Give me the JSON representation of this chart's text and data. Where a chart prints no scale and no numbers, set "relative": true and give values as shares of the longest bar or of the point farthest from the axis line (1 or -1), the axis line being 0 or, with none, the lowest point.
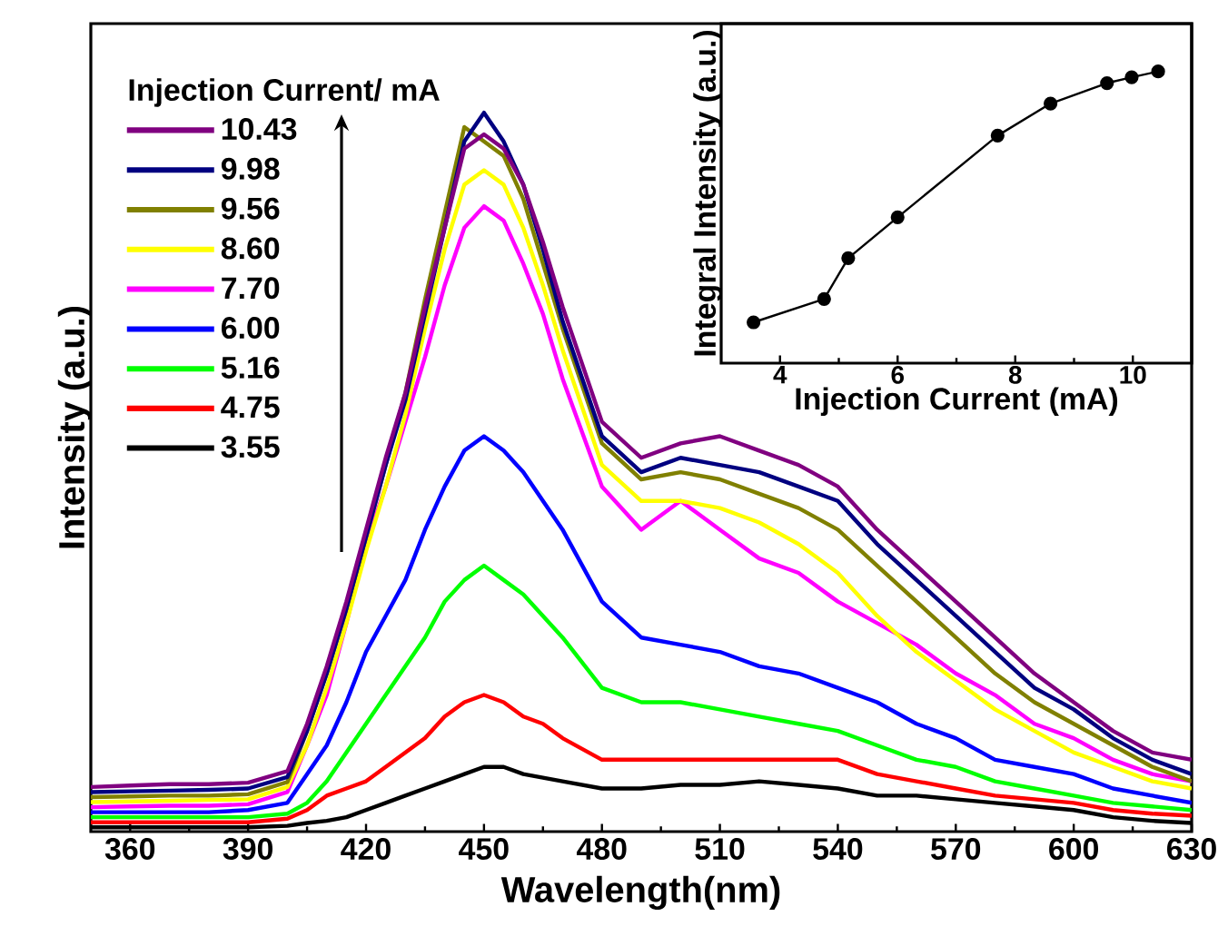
{
  "chart_data": [
    {
      "type": "line",
      "xlabel": "Wavelength(nm)",
      "ylabel": "Intensity (a.u.)",
      "legend_title": "Injection Current/ mA",
      "relative": true,
      "legend": "top left",
      "marker": "none",
      "line_style": "solid",
      "xlim": [
        350,
        630
      ],
      "xticks": [
        360,
        390,
        420,
        450,
        480,
        510,
        540,
        570,
        600,
        630
      ],
      "x": [
        350,
        360,
        370,
        380,
        390,
        400,
        405,
        410,
        415,
        420,
        425,
        430,
        435,
        440,
        445,
        450,
        455,
        460,
        465,
        470,
        480,
        490,
        500,
        510,
        520,
        530,
        540,
        550,
        560,
        570,
        580,
        590,
        600,
        610,
        620,
        630
      ],
      "series": [
        {
          "name": "3.55",
          "color": "#000000",
          "values": [
            0.006,
            0.006,
            0.006,
            0.006,
            0.006,
            0.008,
            0.012,
            0.015,
            0.02,
            0.03,
            0.04,
            0.05,
            0.06,
            0.07,
            0.08,
            0.09,
            0.09,
            0.08,
            0.075,
            0.07,
            0.06,
            0.06,
            0.065,
            0.065,
            0.07,
            0.065,
            0.06,
            0.05,
            0.05,
            0.045,
            0.04,
            0.035,
            0.03,
            0.02,
            0.015,
            0.012
          ]
        },
        {
          "name": "4.75",
          "color": "#ff0000",
          "values": [
            0.013,
            0.013,
            0.013,
            0.013,
            0.013,
            0.018,
            0.03,
            0.05,
            0.06,
            0.07,
            0.09,
            0.11,
            0.13,
            0.16,
            0.18,
            0.19,
            0.18,
            0.16,
            0.15,
            0.13,
            0.1,
            0.1,
            0.1,
            0.1,
            0.1,
            0.1,
            0.1,
            0.08,
            0.07,
            0.06,
            0.05,
            0.045,
            0.04,
            0.03,
            0.025,
            0.022
          ]
        },
        {
          "name": "5.16",
          "color": "#00ff00",
          "values": [
            0.02,
            0.02,
            0.02,
            0.02,
            0.02,
            0.025,
            0.04,
            0.07,
            0.11,
            0.15,
            0.19,
            0.23,
            0.27,
            0.32,
            0.35,
            0.37,
            0.35,
            0.33,
            0.3,
            0.27,
            0.2,
            0.18,
            0.18,
            0.17,
            0.16,
            0.15,
            0.14,
            0.12,
            0.1,
            0.09,
            0.07,
            0.06,
            0.05,
            0.04,
            0.035,
            0.03
          ]
        },
        {
          "name": "6.00",
          "color": "#0000ff",
          "values": [
            0.027,
            0.027,
            0.027,
            0.027,
            0.03,
            0.04,
            0.08,
            0.12,
            0.18,
            0.25,
            0.3,
            0.35,
            0.42,
            0.48,
            0.53,
            0.55,
            0.53,
            0.5,
            0.46,
            0.42,
            0.32,
            0.27,
            0.26,
            0.25,
            0.23,
            0.22,
            0.2,
            0.18,
            0.15,
            0.13,
            0.1,
            0.09,
            0.08,
            0.06,
            0.05,
            0.04
          ]
        },
        {
          "name": "7.70",
          "color": "#ff00ff",
          "values": [
            0.034,
            0.035,
            0.036,
            0.036,
            0.038,
            0.055,
            0.12,
            0.19,
            0.29,
            0.4,
            0.48,
            0.57,
            0.66,
            0.76,
            0.84,
            0.87,
            0.85,
            0.79,
            0.72,
            0.63,
            0.48,
            0.42,
            0.46,
            0.42,
            0.38,
            0.36,
            0.32,
            0.29,
            0.26,
            0.22,
            0.19,
            0.15,
            0.13,
            0.1,
            0.08,
            0.07
          ]
        },
        {
          "name": "8.60",
          "color": "#ffff00",
          "values": [
            0.041,
            0.042,
            0.043,
            0.044,
            0.045,
            0.062,
            0.12,
            0.2,
            0.29,
            0.39,
            0.48,
            0.58,
            0.7,
            0.81,
            0.9,
            0.92,
            0.9,
            0.84,
            0.76,
            0.67,
            0.51,
            0.46,
            0.46,
            0.45,
            0.43,
            0.4,
            0.36,
            0.3,
            0.25,
            0.21,
            0.17,
            0.14,
            0.11,
            0.09,
            0.07,
            0.06
          ]
        },
        {
          "name": "9.56",
          "color": "#808000",
          "values": [
            0.048,
            0.049,
            0.05,
            0.05,
            0.052,
            0.069,
            0.14,
            0.22,
            0.31,
            0.41,
            0.51,
            0.61,
            0.74,
            0.86,
            0.98,
            0.96,
            0.94,
            0.88,
            0.79,
            0.7,
            0.54,
            0.49,
            0.5,
            0.49,
            0.47,
            0.45,
            0.42,
            0.37,
            0.32,
            0.27,
            0.22,
            0.18,
            0.15,
            0.12,
            0.09,
            0.07
          ]
        },
        {
          "name": "9.98",
          "color": "#000080",
          "values": [
            0.055,
            0.056,
            0.057,
            0.058,
            0.06,
            0.076,
            0.14,
            0.22,
            0.31,
            0.41,
            0.51,
            0.6,
            0.72,
            0.84,
            0.96,
            1.0,
            0.96,
            0.9,
            0.81,
            0.71,
            0.55,
            0.5,
            0.52,
            0.51,
            0.5,
            0.48,
            0.46,
            0.4,
            0.35,
            0.3,
            0.25,
            0.2,
            0.17,
            0.13,
            0.1,
            0.08
          ]
        },
        {
          "name": "10.43",
          "color": "#800080",
          "values": [
            0.062,
            0.064,
            0.066,
            0.066,
            0.068,
            0.084,
            0.15,
            0.23,
            0.32,
            0.42,
            0.52,
            0.61,
            0.73,
            0.84,
            0.95,
            0.97,
            0.95,
            0.9,
            0.82,
            0.73,
            0.57,
            0.52,
            0.54,
            0.55,
            0.53,
            0.51,
            0.48,
            0.42,
            0.37,
            0.32,
            0.27,
            0.22,
            0.18,
            0.14,
            0.11,
            0.1
          ]
        }
      ]
    },
    {
      "type": "line",
      "xlabel": "Injection Current (mA)",
      "ylabel": "Integral Intensity (a.u.)",
      "relative": true,
      "marker": "circle",
      "line_style": "solid",
      "xlim": [
        3,
        11
      ],
      "xticks": [
        4,
        6,
        8,
        10
      ],
      "x": [
        3.55,
        4.75,
        5.16,
        6.0,
        7.7,
        8.6,
        9.56,
        9.98,
        10.43
      ],
      "series": [
        {
          "color": "#000000",
          "values": [
            0.14,
            0.22,
            0.36,
            0.5,
            0.78,
            0.89,
            0.96,
            0.98,
            1.0
          ]
        }
      ]
    }
  ]
}
